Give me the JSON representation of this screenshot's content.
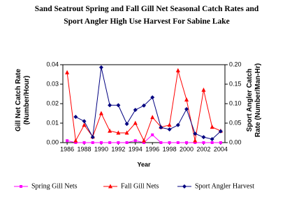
{
  "chart_data": {
    "type": "line",
    "title": "Sand Seatrout Spring and Fall Gill Net Seasonal Catch Rates and Sport Angler High Use Harvest For Sabine Lake",
    "x_label": "Year",
    "y_label": "Gill Net Catch Rate (Number/Hour)",
    "y2_label": "Sport Angler Catch Rate (Number/Man-Hr)",
    "x": [
      1986,
      1987,
      1988,
      1989,
      1990,
      1991,
      1992,
      1993,
      1994,
      1995,
      1996,
      1997,
      1998,
      1999,
      2000,
      2001,
      2002,
      2003,
      2004
    ],
    "xlim": [
      1985.5,
      2004.5
    ],
    "xticks": [
      1986,
      1988,
      1990,
      1992,
      1994,
      1996,
      1998,
      2000,
      2002,
      2004
    ],
    "ylim": [
      0,
      0.04
    ],
    "yticks": [
      {
        "value": 0,
        "label": "0.00"
      },
      {
        "value": 0.01,
        "label": "0.01"
      },
      {
        "value": 0.02,
        "label": "0.02"
      },
      {
        "value": 0.03,
        "label": "0.03"
      },
      {
        "value": 0.04,
        "label": "0.04"
      }
    ],
    "y2lim": [
      0,
      0.2
    ],
    "y2ticks": [
      {
        "value": 0,
        "label": "0.00"
      },
      {
        "value": 0.05,
        "label": "0.05"
      },
      {
        "value": 0.1,
        "label": "0.10"
      },
      {
        "value": 0.15,
        "label": "0.15"
      },
      {
        "value": 0.2,
        "label": "0.20"
      }
    ],
    "series": [
      {
        "name": "Spring Gill Nets",
        "color": "#ff00ff",
        "marker": "square",
        "values": [
          0.001,
          0,
          0,
          0,
          0,
          0,
          0,
          0,
          0.001,
          0,
          0.004,
          0,
          0,
          0,
          0,
          0,
          0,
          0,
          0
        ]
      },
      {
        "name": "Fall Gill Nets",
        "color": "#ff0000",
        "marker": "triangle",
        "values": [
          0.036,
          0.001,
          0.009,
          0.003,
          0.015,
          0.006,
          0.005,
          0.005,
          0.01,
          0.001,
          0.013,
          0.008,
          0.009,
          0.037,
          0.022,
          0.001,
          0.027,
          0.008,
          0.006
        ]
      },
      {
        "name": "Sport Angler Harvest",
        "color": "#000080",
        "marker": "diamond",
        "axis": "y2",
        "values": [
          null,
          0.066,
          0.055,
          0.014,
          0.193,
          0.096,
          0.096,
          0.048,
          0.084,
          0.095,
          0.116,
          0.039,
          0.034,
          0.045,
          0.086,
          0.023,
          0.014,
          0.009,
          0.029
        ]
      }
    ]
  }
}
